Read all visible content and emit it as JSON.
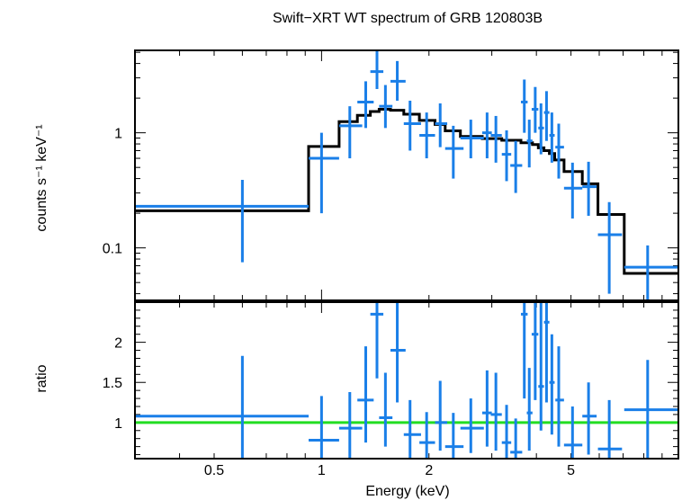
{
  "chart_data": [
    {
      "type": "scatter",
      "panel": "spectrum",
      "title": "Swift−XRT WT spectrum of GRB 120803B",
      "xlabel": "",
      "ylabel": "counts s⁻¹ keV⁻¹",
      "xscale": "log",
      "yscale": "log",
      "xlim": [
        0.3,
        10
      ],
      "ylim": [
        0.035,
        5.2
      ],
      "ytick_labels": [
        "1",
        "0.1"
      ],
      "ytick_values": [
        1,
        0.1
      ],
      "colors": {
        "data": "#1a7fe8",
        "model": "#000000"
      },
      "series": [
        {
          "points": [
            {
              "x": 0.6,
              "xerr": [
                0.3,
                0.92
              ],
              "y": 0.23,
              "yerr": [
                0.075,
                0.39
              ]
            },
            {
              "x": 1.0,
              "xerr": [
                0.92,
                1.12
              ],
              "y": 0.6,
              "yerr": [
                0.2,
                1.0
              ]
            },
            {
              "x": 1.2,
              "xerr": [
                1.12,
                1.3
              ],
              "y": 1.15,
              "yerr": [
                0.6,
                1.7
              ]
            },
            {
              "x": 1.33,
              "xerr": [
                1.26,
                1.4
              ],
              "y": 1.85,
              "yerr": [
                1.1,
                2.8
              ]
            },
            {
              "x": 1.43,
              "xerr": [
                1.37,
                1.49
              ],
              "y": 3.4,
              "yerr": [
                2.4,
                5.2
              ]
            },
            {
              "x": 1.51,
              "xerr": [
                1.45,
                1.58
              ],
              "y": 1.7,
              "yerr": [
                1.1,
                2.6
              ]
            },
            {
              "x": 1.63,
              "xerr": [
                1.56,
                1.72
              ],
              "y": 2.8,
              "yerr": [
                1.9,
                4.2
              ]
            },
            {
              "x": 1.77,
              "xerr": [
                1.7,
                1.9
              ],
              "y": 1.2,
              "yerr": [
                0.7,
                1.9
              ]
            },
            {
              "x": 1.97,
              "xerr": [
                1.88,
                2.08
              ],
              "y": 0.95,
              "yerr": [
                0.6,
                1.5
              ]
            },
            {
              "x": 2.15,
              "xerr": [
                2.08,
                2.25
              ],
              "y": 1.2,
              "yerr": [
                0.75,
                1.8
              ]
            },
            {
              "x": 2.34,
              "xerr": [
                2.22,
                2.5
              ],
              "y": 0.73,
              "yerr": [
                0.4,
                1.15
              ]
            },
            {
              "x": 2.62,
              "xerr": [
                2.45,
                2.85
              ],
              "y": 0.9,
              "yerr": [
                0.6,
                1.3
              ]
            },
            {
              "x": 2.91,
              "xerr": [
                2.82,
                3.0
              ],
              "y": 1.0,
              "yerr": [
                0.6,
                1.5
              ]
            },
            {
              "x": 3.08,
              "xerr": [
                2.98,
                3.2
              ],
              "y": 0.95,
              "yerr": [
                0.55,
                1.4
              ]
            },
            {
              "x": 3.3,
              "xerr": [
                3.2,
                3.4
              ],
              "y": 0.65,
              "yerr": [
                0.38,
                1.05
              ]
            },
            {
              "x": 3.5,
              "xerr": [
                3.38,
                3.65
              ],
              "y": 0.52,
              "yerr": [
                0.3,
                0.85
              ]
            },
            {
              "x": 3.7,
              "xerr": [
                3.62,
                3.78
              ],
              "y": 1.85,
              "yerr": [
                1.0,
                2.9
              ]
            },
            {
              "x": 3.82,
              "xerr": [
                3.76,
                3.9
              ],
              "y": 0.85,
              "yerr": [
                0.5,
                1.3
              ]
            },
            {
              "x": 3.97,
              "xerr": [
                3.88,
                4.05
              ],
              "y": 1.6,
              "yerr": [
                1.0,
                2.5
              ]
            },
            {
              "x": 4.12,
              "xerr": [
                4.05,
                4.2
              ],
              "y": 1.1,
              "yerr": [
                0.65,
                1.8
              ]
            },
            {
              "x": 4.27,
              "xerr": [
                4.2,
                4.35
              ],
              "y": 1.5,
              "yerr": [
                0.85,
                2.3
              ]
            },
            {
              "x": 4.42,
              "xerr": [
                4.35,
                4.5
              ],
              "y": 0.95,
              "yerr": [
                0.55,
                1.5
              ]
            },
            {
              "x": 4.62,
              "xerr": [
                4.52,
                4.78
              ],
              "y": 0.75,
              "yerr": [
                0.4,
                1.2
              ]
            },
            {
              "x": 5.05,
              "xerr": [
                4.78,
                5.38
              ],
              "y": 0.33,
              "yerr": [
                0.18,
                0.55
              ]
            },
            {
              "x": 5.6,
              "xerr": [
                5.38,
                5.9
              ],
              "y": 0.34,
              "yerr": [
                0.19,
                0.56
              ]
            },
            {
              "x": 6.4,
              "xerr": [
                5.95,
                6.95
              ],
              "y": 0.13,
              "yerr": [
                0.04,
                0.25
              ]
            },
            {
              "x": 8.2,
              "xerr": [
                7.05,
                10.0
              ],
              "y": 0.068,
              "yerr": [
                0.03,
                0.105
              ]
            }
          ]
        }
      ],
      "model_steps": [
        {
          "x0": 0.3,
          "x1": 0.92,
          "y": 0.21
        },
        {
          "x0": 0.92,
          "x1": 1.12,
          "y": 0.76
        },
        {
          "x0": 1.12,
          "x1": 1.26,
          "y": 1.25
        },
        {
          "x0": 1.26,
          "x1": 1.37,
          "y": 1.42
        },
        {
          "x0": 1.37,
          "x1": 1.45,
          "y": 1.53
        },
        {
          "x0": 1.45,
          "x1": 1.56,
          "y": 1.6
        },
        {
          "x0": 1.56,
          "x1": 1.7,
          "y": 1.57
        },
        {
          "x0": 1.7,
          "x1": 1.88,
          "y": 1.45
        },
        {
          "x0": 1.88,
          "x1": 2.08,
          "y": 1.28
        },
        {
          "x0": 2.08,
          "x1": 2.22,
          "y": 1.18
        },
        {
          "x0": 2.22,
          "x1": 2.45,
          "y": 1.04
        },
        {
          "x0": 2.45,
          "x1": 2.82,
          "y": 0.93
        },
        {
          "x0": 2.82,
          "x1": 3.2,
          "y": 0.89
        },
        {
          "x0": 3.2,
          "x1": 3.62,
          "y": 0.86
        },
        {
          "x0": 3.62,
          "x1": 3.9,
          "y": 0.82
        },
        {
          "x0": 3.9,
          "x1": 4.05,
          "y": 0.79
        },
        {
          "x0": 4.05,
          "x1": 4.2,
          "y": 0.74
        },
        {
          "x0": 4.2,
          "x1": 4.35,
          "y": 0.7
        },
        {
          "x0": 4.35,
          "x1": 4.5,
          "y": 0.66
        },
        {
          "x0": 4.5,
          "x1": 4.78,
          "y": 0.58
        },
        {
          "x0": 4.78,
          "x1": 5.38,
          "y": 0.46
        },
        {
          "x0": 5.38,
          "x1": 5.95,
          "y": 0.36
        },
        {
          "x0": 5.95,
          "x1": 7.05,
          "y": 0.195
        },
        {
          "x0": 7.05,
          "x1": 10.0,
          "y": 0.06
        }
      ]
    },
    {
      "type": "scatter",
      "panel": "ratio",
      "xlabel": "Energy (keV)",
      "ylabel": "ratio",
      "xscale": "log",
      "yscale": "linear",
      "xlim": [
        0.3,
        10
      ],
      "ylim": [
        0.55,
        2.5
      ],
      "xtick_labels": [
        "0.5",
        "1",
        "2",
        "5"
      ],
      "xtick_values": [
        0.5,
        1,
        2,
        5
      ],
      "ytick_labels": [
        "2",
        "1.5",
        "1"
      ],
      "ytick_values": [
        2,
        1.5,
        1
      ],
      "reference_line": 1,
      "colors": {
        "data": "#1a7fe8",
        "reference": "#22dd22"
      },
      "series": [
        {
          "points": [
            {
              "x": 0.6,
              "xerr": [
                0.3,
                0.92
              ],
              "y": 1.08,
              "yerr": [
                0.35,
                1.83
              ]
            },
            {
              "x": 1.0,
              "xerr": [
                0.92,
                1.12
              ],
              "y": 0.78,
              "yerr": [
                0.4,
                1.33
              ]
            },
            {
              "x": 1.2,
              "xerr": [
                1.12,
                1.3
              ],
              "y": 0.93,
              "yerr": [
                0.5,
                1.38
              ]
            },
            {
              "x": 1.33,
              "xerr": [
                1.26,
                1.4
              ],
              "y": 1.28,
              "yerr": [
                0.75,
                1.95
              ]
            },
            {
              "x": 1.43,
              "xerr": [
                1.37,
                1.49
              ],
              "y": 2.35,
              "yerr": [
                1.55,
                2.5
              ]
            },
            {
              "x": 1.51,
              "xerr": [
                1.45,
                1.58
              ],
              "y": 1.06,
              "yerr": [
                0.7,
                1.62
              ]
            },
            {
              "x": 1.63,
              "xerr": [
                1.56,
                1.72
              ],
              "y": 1.9,
              "yerr": [
                1.25,
                2.5
              ]
            },
            {
              "x": 1.77,
              "xerr": [
                1.7,
                1.9
              ],
              "y": 0.85,
              "yerr": [
                0.5,
                1.28
              ]
            },
            {
              "x": 1.97,
              "xerr": [
                1.88,
                2.08
              ],
              "y": 0.75,
              "yerr": [
                0.5,
                1.13
              ]
            },
            {
              "x": 2.15,
              "xerr": [
                2.08,
                2.25
              ],
              "y": 1.0,
              "yerr": [
                0.65,
                1.52
              ]
            },
            {
              "x": 2.34,
              "xerr": [
                2.22,
                2.5
              ],
              "y": 0.7,
              "yerr": [
                0.4,
                1.12
              ]
            },
            {
              "x": 2.62,
              "xerr": [
                2.45,
                2.85
              ],
              "y": 0.93,
              "yerr": [
                0.62,
                1.3
              ]
            },
            {
              "x": 2.91,
              "xerr": [
                2.82,
                3.0
              ],
              "y": 1.12,
              "yerr": [
                0.7,
                1.65
              ]
            },
            {
              "x": 3.08,
              "xerr": [
                2.98,
                3.2
              ],
              "y": 1.1,
              "yerr": [
                0.65,
                1.62
              ]
            },
            {
              "x": 3.3,
              "xerr": [
                3.2,
                3.4
              ],
              "y": 0.75,
              "yerr": [
                0.45,
                1.22
              ]
            },
            {
              "x": 3.5,
              "xerr": [
                3.38,
                3.65
              ],
              "y": 0.63,
              "yerr": [
                0.38,
                1.05
              ]
            },
            {
              "x": 3.7,
              "xerr": [
                3.62,
                3.78
              ],
              "y": 2.35,
              "yerr": [
                1.3,
                2.5
              ]
            },
            {
              "x": 3.82,
              "xerr": [
                3.76,
                3.9
              ],
              "y": 1.12,
              "yerr": [
                0.65,
                1.68
              ]
            },
            {
              "x": 3.97,
              "xerr": [
                3.88,
                4.05
              ],
              "y": 2.1,
              "yerr": [
                1.28,
                2.5
              ]
            },
            {
              "x": 4.12,
              "xerr": [
                4.05,
                4.2
              ],
              "y": 1.45,
              "yerr": [
                0.9,
                2.5
              ]
            },
            {
              "x": 4.27,
              "xerr": [
                4.2,
                4.35
              ],
              "y": 2.25,
              "yerr": [
                1.25,
                2.5
              ]
            },
            {
              "x": 4.42,
              "xerr": [
                4.35,
                4.5
              ],
              "y": 1.5,
              "yerr": [
                0.85,
                2.1
              ]
            },
            {
              "x": 4.62,
              "xerr": [
                4.52,
                4.78
              ],
              "y": 1.28,
              "yerr": [
                0.7,
                1.95
              ]
            },
            {
              "x": 5.05,
              "xerr": [
                4.78,
                5.38
              ],
              "y": 0.72,
              "yerr": [
                0.4,
                1.2
              ]
            },
            {
              "x": 5.6,
              "xerr": [
                5.38,
                5.9
              ],
              "y": 1.08,
              "yerr": [
                0.6,
                1.5
              ]
            },
            {
              "x": 6.4,
              "xerr": [
                5.95,
                6.95
              ],
              "y": 0.67,
              "yerr": [
                0.2,
                1.28
              ]
            },
            {
              "x": 8.2,
              "xerr": [
                7.05,
                10.0
              ],
              "y": 1.16,
              "yerr": [
                0.55,
                1.78
              ]
            }
          ]
        }
      ]
    }
  ]
}
